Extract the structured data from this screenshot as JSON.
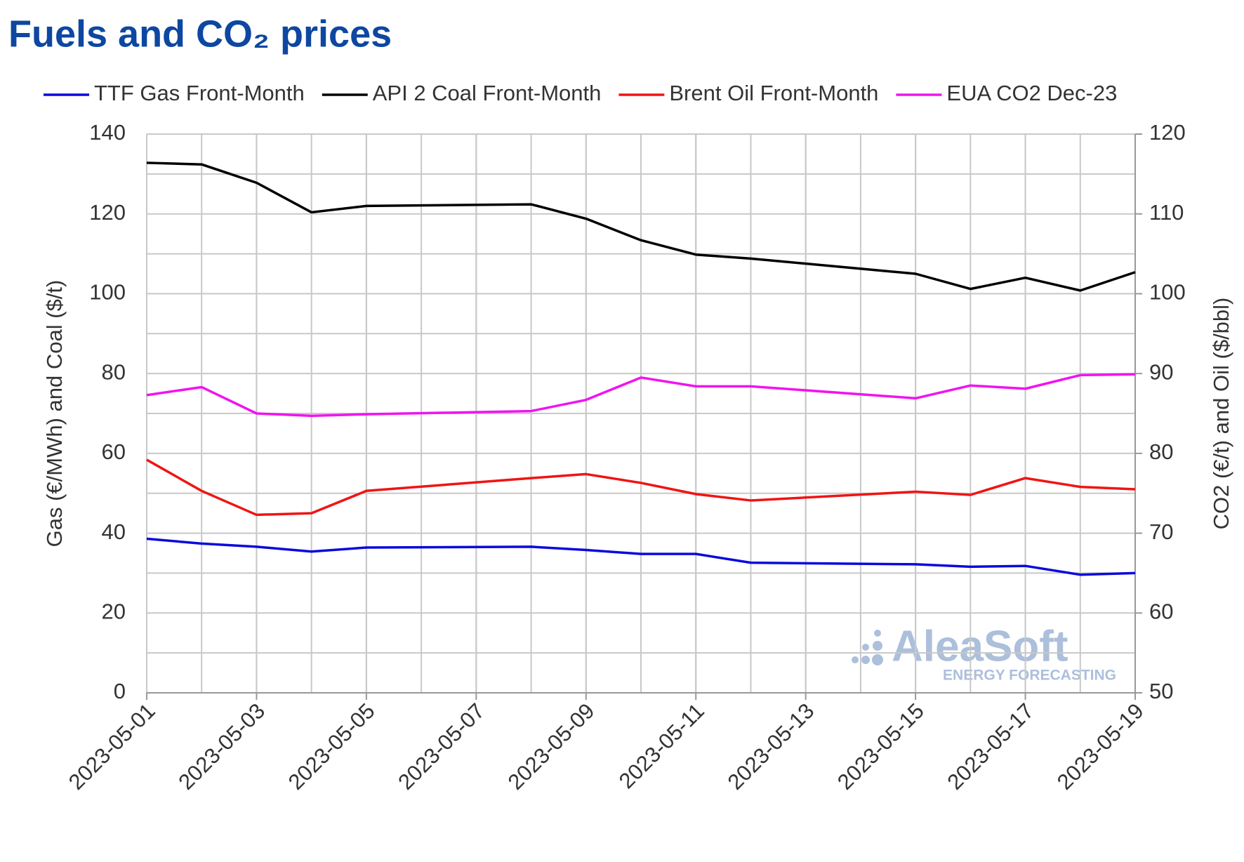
{
  "chart_data": {
    "type": "line",
    "title": "Fuels and CO₂ prices",
    "y_label": "Gas (€/MWh) and Coal ($/t)",
    "y2_label": "CO2 (€/t) and Oil ($/bbl)",
    "x": [
      "2023-05-01",
      "2023-05-02",
      "2023-05-03",
      "2023-05-04",
      "2023-05-05",
      "2023-05-08",
      "2023-05-09",
      "2023-05-10",
      "2023-05-11",
      "2023-05-12",
      "2023-05-15",
      "2023-05-16",
      "2023-05-17",
      "2023-05-18",
      "2023-05-19"
    ],
    "xlim": [
      "2023-05-01",
      "2023-05-19"
    ],
    "xticks": [
      "2023-05-01",
      "2023-05-03",
      "2023-05-05",
      "2023-05-07",
      "2023-05-09",
      "2023-05-11",
      "2023-05-13",
      "2023-05-15",
      "2023-05-17",
      "2023-05-19"
    ],
    "ylim": [
      0,
      140
    ],
    "yticks": [
      0,
      20,
      40,
      60,
      80,
      100,
      120,
      140
    ],
    "y2lim": [
      50,
      120
    ],
    "y2ticks": [
      50,
      60,
      70,
      80,
      90,
      100,
      110,
      120
    ],
    "grid": true,
    "legend": "top",
    "series": [
      {
        "name": "TTF Gas Front-Month",
        "color": "#0a0adc",
        "values": [
          38.6,
          37.4,
          36.6,
          35.4,
          36.4,
          36.6,
          35.8,
          34.8,
          34.8,
          32.6,
          32.2,
          31.6,
          31.8,
          29.6,
          30.0
        ]
      },
      {
        "name": "API 2 Coal Front-Month",
        "color": "#000000",
        "values": [
          132.8,
          132.4,
          127.8,
          120.4,
          122,
          122.4,
          118.8,
          113.4,
          109.8,
          108.8,
          105,
          101.2,
          104,
          100.8,
          105.4
        ]
      },
      {
        "name": "Brent Oil Front-Month",
        "color": "#f01414",
        "axis": "y2",
        "values": [
          79.2,
          75.3,
          72.3,
          72.5,
          75.3,
          76.9,
          77.4,
          76.3,
          74.9,
          74.1,
          75.2,
          74.8,
          76.9,
          75.8,
          75.5
        ]
      },
      {
        "name": "EUA CO2 Dec-23",
        "color": "#f014f0",
        "axis": "y2",
        "values": [
          87.3,
          88.3,
          85.0,
          84.7,
          84.9,
          85.3,
          86.7,
          89.5,
          88.4,
          88.4,
          86.9,
          88.5,
          88.1,
          89.8,
          89.9
        ]
      }
    ],
    "watermark": {
      "brand": "AleaSoft",
      "tagline": "ENERGY FORECASTING"
    }
  }
}
